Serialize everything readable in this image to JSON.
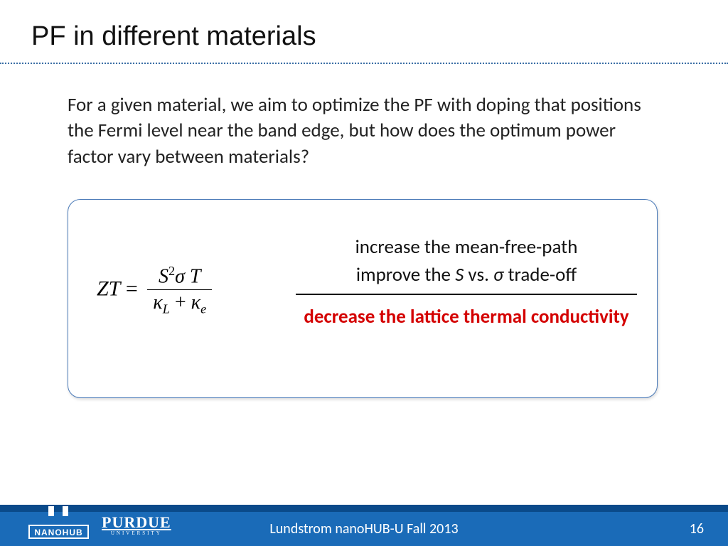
{
  "title": "PF in different materials",
  "body": "For a given material, we aim to optimize the PF with doping that positions the Fermi level near the band edge, but how does the optimum power factor vary between materials?",
  "equation": {
    "lhs": "ZT",
    "numerator_html": "<span class='italic'>S</span><span class='sup'>2</span><span class='italic'>σ T</span>",
    "denominator_html": "<span class='italic'>κ</span><span class='sub'>L</span> + <span class='italic'>κ</span><span class='sub'>e</span>"
  },
  "box": {
    "line1_pre": "increase the mean-free-path",
    "line2_pre": "improve the ",
    "line2_S": "S",
    "line2_mid": " vs. ",
    "line2_sigma": "σ",
    "line2_post": " trade-off",
    "line3": "decrease the lattice thermal conductivity",
    "line3_color": "#d40000"
  },
  "footer": {
    "center": "Lundstrom nanoHUB-U Fall 2013",
    "page": "16",
    "bar_light": "#1a6bb8",
    "bar_dark": "#0a4a8a"
  },
  "logos": {
    "nanohub_text": "NANOHUB",
    "purdue_text": "PURDUE",
    "purdue_sub": "UNIVERSITY"
  },
  "colors": {
    "title": "#111111",
    "dotline": "#3a6ea5",
    "box_border": "#4a7ab8",
    "text": "#222222"
  }
}
